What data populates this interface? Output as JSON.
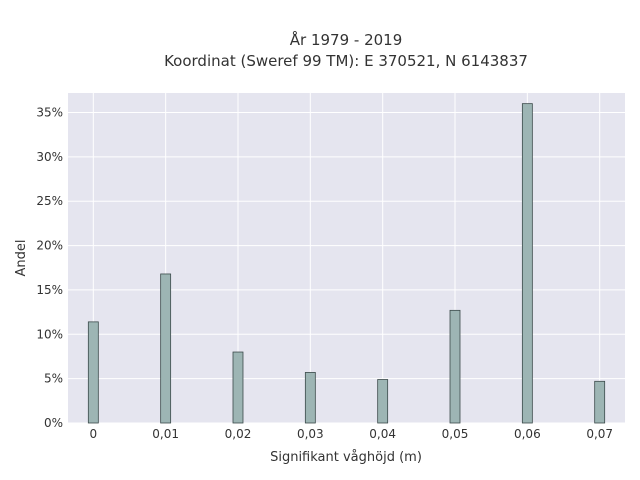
{
  "chart_data": {
    "type": "bar",
    "title": "År 1979 - 2019",
    "subtitle": "Koordinat (Sweref 99 TM): E 370521, N 6143837",
    "xlabel": "Signifikant våghöjd (m)",
    "ylabel": "Andel",
    "categories": [
      "0",
      "0,01",
      "0,02",
      "0,03",
      "0,04",
      "0,05",
      "0,06",
      "0,07"
    ],
    "x": [
      0,
      0.01,
      0.02,
      0.03,
      0.04,
      0.05,
      0.06,
      0.07
    ],
    "values": [
      11.4,
      16.8,
      8.0,
      5.7,
      4.9,
      12.7,
      36.0,
      4.7
    ],
    "xlim": [
      -0.0035,
      0.0735
    ],
    "ylim": [
      0,
      37.2
    ],
    "yticks": [
      0,
      5,
      10,
      15,
      20,
      25,
      30,
      35
    ],
    "ytick_labels": [
      "0%",
      "5%",
      "10%",
      "15%",
      "20%",
      "25%",
      "30%",
      "35%"
    ],
    "grid": true,
    "legend": "none",
    "colors": {
      "plot_background": "#e5e5ef",
      "bar_fill": "#9db5b4",
      "bar_edge": "#3b4a4a",
      "grid": "#ffffff",
      "text": "#333333"
    }
  }
}
